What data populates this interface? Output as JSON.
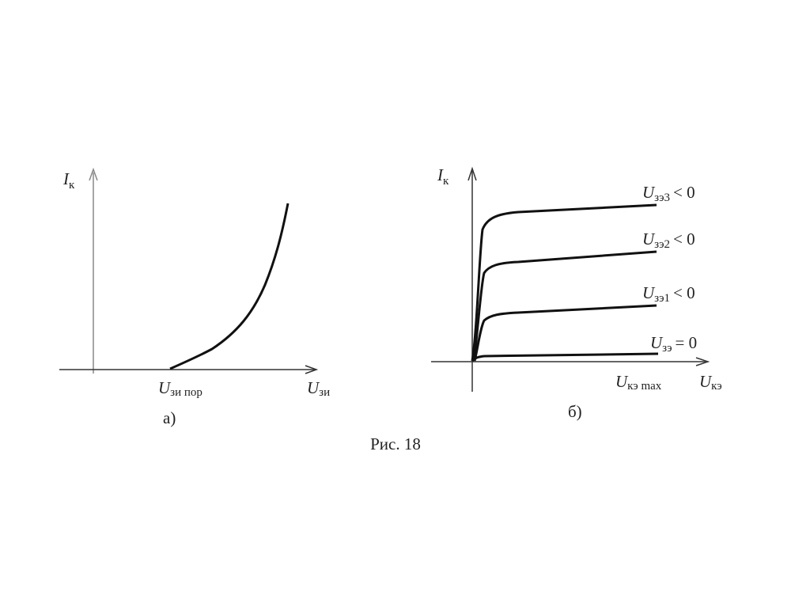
{
  "panel_a": {
    "y_axis_label": {
      "symbol": "I",
      "subscript": "к"
    },
    "threshold_label": {
      "symbol": "U",
      "subscript": "зи пор"
    },
    "x_axis_label": {
      "symbol": "U",
      "subscript": "зи"
    },
    "caption": "а)"
  },
  "panel_b": {
    "y_axis_label": {
      "symbol": "I",
      "subscript": "к"
    },
    "curves": [
      {
        "symbol": "U",
        "subscript": "зэ3",
        "relation": "< 0"
      },
      {
        "symbol": "U",
        "subscript": "зэ2",
        "relation": "< 0"
      },
      {
        "symbol": "U",
        "subscript": "зэ1",
        "relation": "< 0"
      },
      {
        "symbol": "U",
        "subscript": "зэ",
        "relation": "= 0"
      }
    ],
    "x_max_label": {
      "symbol": "U",
      "subscript": "кэ max"
    },
    "x_axis_label": {
      "symbol": "U",
      "subscript": "кэ"
    },
    "caption": "б)"
  },
  "figure_caption": "Рис. 18"
}
